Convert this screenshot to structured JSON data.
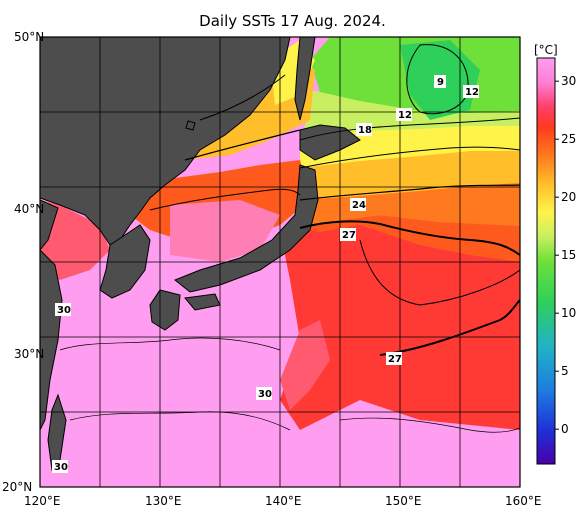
{
  "title": "Daily SSTs 17 Aug. 2024.",
  "map": {
    "lon_min": 120,
    "lon_max": 160,
    "lat_min": 20,
    "lat_max": 50,
    "grid_step_deg": 5,
    "lon_ticks": [
      "120°E",
      "130°E",
      "140°E",
      "150°E",
      "160°E"
    ],
    "lat_ticks": [
      "50°N",
      "40°N",
      "30°N",
      "20°N"
    ],
    "land_color": "#4d4d4d"
  },
  "colorbar": {
    "unit": "[°C]",
    "ticks": [
      "30",
      "25",
      "20",
      "15",
      "10",
      "5",
      "0"
    ],
    "range": [
      -3,
      32
    ],
    "colors": [
      "#4a00a8",
      "#1f2fd6",
      "#1e7be0",
      "#21b3c4",
      "#2fd05a",
      "#6fe03a",
      "#c8ef60",
      "#fff34a",
      "#ffbe2a",
      "#ff7a1e",
      "#ff3a1e",
      "#ff5a8c",
      "#ff7fd6",
      "#ff9ef0"
    ]
  },
  "contour_labels": [
    "9",
    "12",
    "12",
    "18",
    "24",
    "27",
    "27",
    "30",
    "30",
    "30"
  ]
}
